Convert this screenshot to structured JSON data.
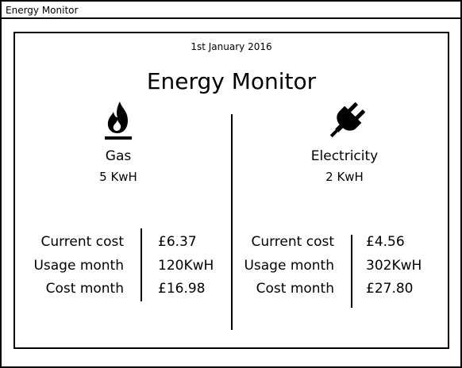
{
  "window": {
    "title": "Energy Monitor"
  },
  "header": {
    "date": "1st January 2016",
    "title": "Energy Monitor"
  },
  "gas": {
    "icon": "flame-icon",
    "label": "Gas",
    "current_usage": "5 KwH",
    "rows": [
      {
        "label": "Current cost",
        "value": "£6.37"
      },
      {
        "label": "Usage month",
        "value": "120KwH"
      },
      {
        "label": "Cost month",
        "value": "£16.98"
      }
    ]
  },
  "electricity": {
    "icon": "plug-icon",
    "label": "Electricity",
    "current_usage": "2 KwH",
    "rows": [
      {
        "label": "Current cost",
        "value": "£4.56"
      },
      {
        "label": "Usage month",
        "value": "302KwH"
      },
      {
        "label": "Cost month",
        "value": "£27.80"
      }
    ]
  }
}
